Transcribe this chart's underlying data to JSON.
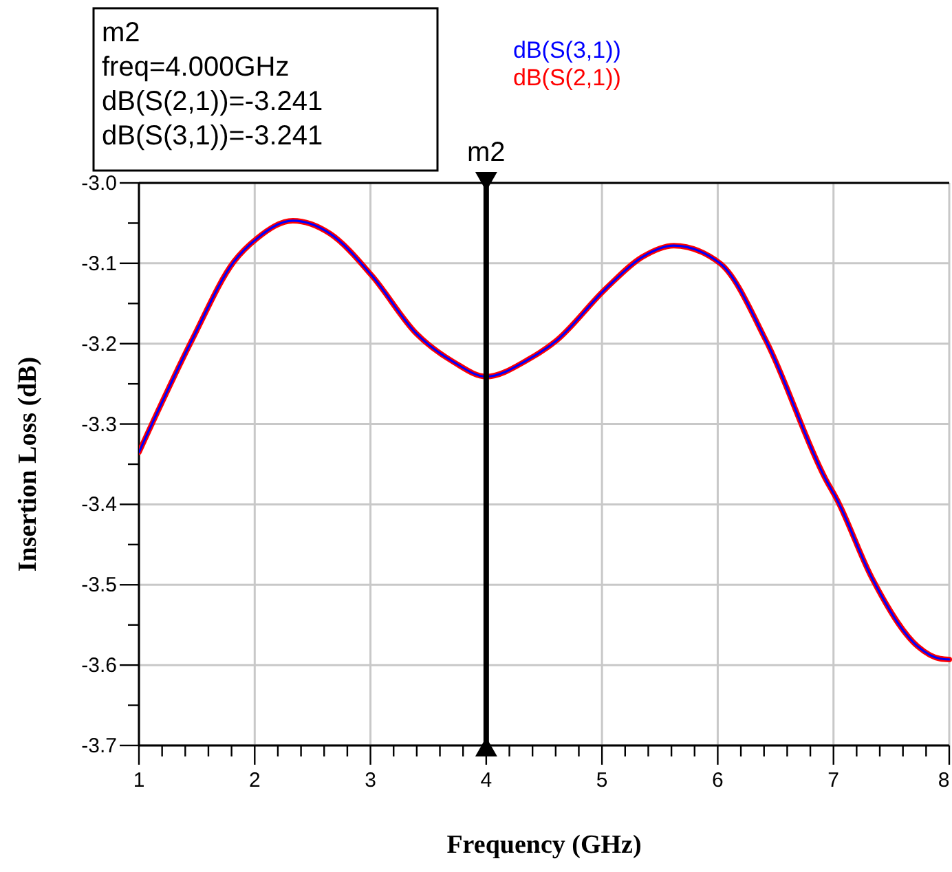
{
  "chart_data": {
    "type": "line",
    "xlabel": "Frequency (GHz)",
    "ylabel": "Insertion Loss (dB)",
    "x": [
      1,
      1.46,
      1.82,
      2.02,
      2.33,
      2.65,
      3.01,
      3.4,
      3.72,
      4,
      4.36,
      4.6,
      5.03,
      5.35,
      5.62,
      6.02,
      6.42,
      6.93,
      7.03,
      7.33,
      7.73,
      7.92,
      8
    ],
    "series": [
      {
        "name": "dB(S(3,1))",
        "color": "#0000ff",
        "values": [
          -3.335,
          -3.195,
          -3.098,
          -3.069,
          -3.047,
          -3.063,
          -3.115,
          -3.188,
          -3.223,
          -3.241,
          -3.22,
          -3.197,
          -3.132,
          -3.092,
          -3.078,
          -3.1,
          -3.197,
          -3.368,
          -3.394,
          -3.491,
          -3.577,
          -3.592,
          -3.593
        ]
      },
      {
        "name": "dB(S(2,1))",
        "color": "#ff0000",
        "values": [
          -3.335,
          -3.195,
          -3.098,
          -3.069,
          -3.047,
          -3.063,
          -3.115,
          -3.188,
          -3.223,
          -3.241,
          -3.22,
          -3.197,
          -3.132,
          -3.092,
          -3.078,
          -3.1,
          -3.197,
          -3.368,
          -3.394,
          -3.491,
          -3.577,
          -3.592,
          -3.593
        ]
      }
    ],
    "xlim": [
      1,
      8
    ],
    "xticks": [
      1,
      {
        "value": 1.2,
        "label": null
      },
      {
        "value": 1.4,
        "label": null
      },
      {
        "value": 1.6,
        "label": null
      },
      {
        "value": 1.8,
        "label": null
      },
      2,
      {
        "value": 2.2,
        "label": null
      },
      {
        "value": 2.4,
        "label": null
      },
      {
        "value": 2.6,
        "label": null
      },
      {
        "value": 2.8,
        "label": null
      },
      3,
      {
        "value": 3.2,
        "label": null
      },
      {
        "value": 3.4,
        "label": null
      },
      {
        "value": 3.6,
        "label": null
      },
      {
        "value": 3.8,
        "label": null
      },
      4,
      {
        "value": 4.2,
        "label": null
      },
      {
        "value": 4.4,
        "label": null
      },
      {
        "value": 4.6,
        "label": null
      },
      {
        "value": 4.8,
        "label": null
      },
      5,
      {
        "value": 5.2,
        "label": null
      },
      {
        "value": 5.4,
        "label": null
      },
      {
        "value": 5.6,
        "label": null
      },
      {
        "value": 5.8,
        "label": null
      },
      6,
      {
        "value": 6.2,
        "label": null
      },
      {
        "value": 6.4,
        "label": null
      },
      {
        "value": 6.6,
        "label": null
      },
      {
        "value": 6.8,
        "label": null
      },
      7,
      {
        "value": 7.2,
        "label": null
      },
      {
        "value": 7.4,
        "label": null
      },
      {
        "value": 7.6,
        "label": null
      },
      {
        "value": 7.8,
        "label": null
      },
      8
    ],
    "ylim": [
      -3.7,
      -3.0
    ],
    "yticks": [
      {
        "value": -3.7,
        "label": "-3.7"
      },
      {
        "value": -3.65,
        "label": null
      },
      {
        "value": -3.6,
        "label": "-3.6"
      },
      {
        "value": -3.55,
        "label": null
      },
      {
        "value": -3.5,
        "label": "-3.5"
      },
      {
        "value": -3.45,
        "label": null
      },
      {
        "value": -3.4,
        "label": "-3.4"
      },
      {
        "value": -3.35,
        "label": null
      },
      {
        "value": -3.3,
        "label": "-3.3"
      },
      {
        "value": -3.25,
        "label": null
      },
      {
        "value": -3.2,
        "label": "-3.2"
      },
      {
        "value": -3.15,
        "label": null
      },
      {
        "value": -3.1,
        "label": "-3.1"
      },
      {
        "value": -3.05,
        "label": null
      },
      {
        "value": -3.0,
        "label": "-3.0"
      }
    ],
    "grid": true,
    "legend": "top",
    "marker": "none",
    "line_style": "solid",
    "ref_lines": [
      {
        "axis": "x",
        "value": 4,
        "label": "m2",
        "color": "#000000"
      }
    ],
    "annotations": [
      "m2",
      "freq=4.000GHz",
      "dB(S(2,1))=-3.241",
      "dB(S(3,1))=-3.241"
    ]
  }
}
